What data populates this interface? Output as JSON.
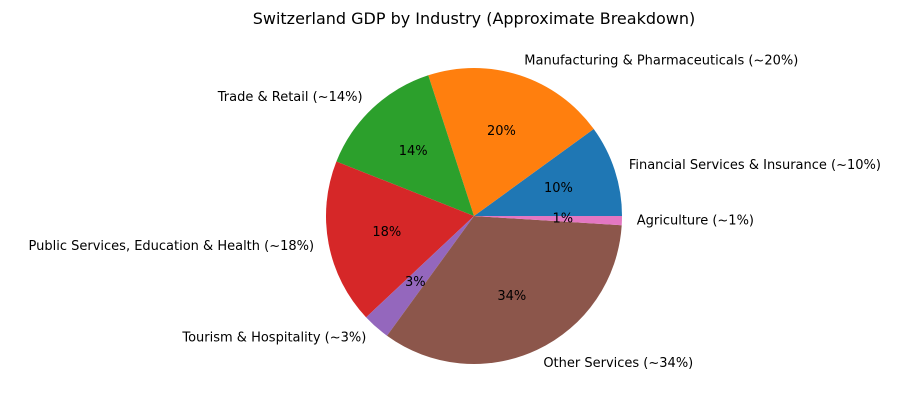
{
  "chart_data": {
    "type": "pie",
    "title": "Switzerland GDP by Industry (Approximate Breakdown)",
    "start_angle": 0,
    "direction": "counterclockwise",
    "slices": [
      {
        "label": "Financial Services & Insurance (~10%)",
        "value": 10,
        "pct_label": "10%",
        "color": "#1f77b4"
      },
      {
        "label": "Manufacturing & Pharmaceuticals (~20%)",
        "value": 20,
        "pct_label": "20%",
        "color": "#ff7f0e"
      },
      {
        "label": "Trade & Retail (~14%)",
        "value": 14,
        "pct_label": "14%",
        "color": "#2ca02c"
      },
      {
        "label": "Public Services, Education & Health (~18%)",
        "value": 18,
        "pct_label": "18%",
        "color": "#d62728"
      },
      {
        "label": "Tourism & Hospitality (~3%)",
        "value": 3,
        "pct_label": "3%",
        "color": "#9467bd"
      },
      {
        "label": "Other Services (~34%)",
        "value": 34,
        "pct_label": "34%",
        "color": "#8c564b"
      },
      {
        "label": "Agriculture (~1%)",
        "value": 1,
        "pct_label": "1%",
        "color": "#e377c2"
      }
    ]
  }
}
